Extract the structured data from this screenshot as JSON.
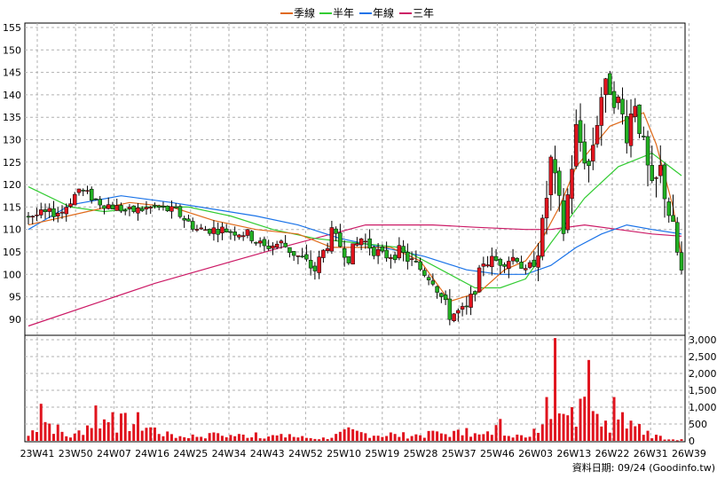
{
  "chart_data": {
    "type": "candlestick",
    "legend": [
      {
        "label": "季線",
        "color": "#e06a1a"
      },
      {
        "label": "半年",
        "color": "#33cc33"
      },
      {
        "label": "年線",
        "color": "#1a73e8"
      },
      {
        "label": "三年",
        "color": "#cc1a66"
      }
    ],
    "price_axis": {
      "min": 85,
      "max": 156,
      "ticks": [
        155,
        150,
        145,
        140,
        135,
        130,
        125,
        120,
        115,
        110,
        105,
        100,
        95,
        90
      ]
    },
    "volume_axis": {
      "min": 0,
      "max": 3000,
      "ticks": [
        3000,
        2500,
        2000,
        1500,
        1000,
        500,
        0
      ],
      "tick_labels": [
        "3,000",
        "2,500",
        "2,000",
        "1,500",
        "1,000",
        "500",
        "0"
      ]
    },
    "x_tick_labels": [
      "23W41",
      "23W50",
      "24W07",
      "24W16",
      "24W25",
      "24W34",
      "24W43",
      "24W52",
      "25W10",
      "25W19",
      "25W28",
      "25W37",
      "25W46",
      "26W03",
      "26W13",
      "26W22",
      "26W31",
      "26W39"
    ],
    "weeks": 156,
    "anchors": [
      [
        0,
        113
      ],
      [
        8,
        114
      ],
      [
        12,
        119
      ],
      [
        17,
        116
      ],
      [
        24,
        114
      ],
      [
        30,
        115
      ],
      [
        35,
        114
      ],
      [
        40,
        110
      ],
      [
        46,
        110
      ],
      [
        52,
        109
      ],
      [
        56,
        106
      ],
      [
        60,
        107
      ],
      [
        64,
        104
      ],
      [
        68,
        101
      ],
      [
        72,
        109
      ],
      [
        76,
        104
      ],
      [
        79,
        108
      ],
      [
        84,
        104
      ],
      [
        88,
        105
      ],
      [
        92,
        102
      ],
      [
        96,
        99
      ],
      [
        100,
        91
      ],
      [
        104,
        92
      ],
      [
        106,
        97
      ],
      [
        108,
        103
      ],
      [
        112,
        103
      ],
      [
        116,
        104
      ],
      [
        118,
        100
      ],
      [
        120,
        103
      ],
      [
        122,
        110
      ],
      [
        124,
        125
      ],
      [
        127,
        110
      ],
      [
        130,
        132
      ],
      [
        133,
        124
      ],
      [
        136,
        140
      ],
      [
        138,
        142
      ],
      [
        140,
        138
      ],
      [
        142,
        132
      ],
      [
        144,
        139
      ],
      [
        146,
        128
      ],
      [
        148,
        118
      ],
      [
        150,
        123
      ],
      [
        152,
        114
      ],
      [
        155,
        100
      ]
    ],
    "ma_quarter": [
      [
        0,
        111
      ],
      [
        14,
        114
      ],
      [
        24,
        116
      ],
      [
        34,
        115
      ],
      [
        44,
        112
      ],
      [
        54,
        110
      ],
      [
        64,
        109
      ],
      [
        72,
        106
      ],
      [
        80,
        106
      ],
      [
        86,
        106
      ],
      [
        93,
        103
      ],
      [
        100,
        94
      ],
      [
        107,
        96
      ],
      [
        113,
        101
      ],
      [
        118,
        103
      ],
      [
        122,
        108
      ],
      [
        126,
        115
      ],
      [
        130,
        124
      ],
      [
        138,
        133
      ],
      [
        146,
        136
      ],
      [
        149,
        129
      ],
      [
        153,
        115
      ],
      [
        155,
        104
      ]
    ],
    "ma_half": [
      [
        0,
        119.5
      ],
      [
        10,
        115
      ],
      [
        18,
        114
      ],
      [
        28,
        115
      ],
      [
        38,
        115
      ],
      [
        48,
        113
      ],
      [
        58,
        110
      ],
      [
        68,
        108
      ],
      [
        78,
        107
      ],
      [
        88,
        106
      ],
      [
        98,
        101
      ],
      [
        106,
        97
      ],
      [
        112,
        97
      ],
      [
        118,
        99
      ],
      [
        124,
        107
      ],
      [
        132,
        117
      ],
      [
        140,
        124
      ],
      [
        148,
        127
      ],
      [
        155,
        122
      ]
    ],
    "ma_year": [
      [
        0,
        110
      ],
      [
        10,
        115.5
      ],
      [
        22,
        117.5
      ],
      [
        34,
        116
      ],
      [
        44,
        114.5
      ],
      [
        54,
        113
      ],
      [
        64,
        111
      ],
      [
        74,
        108
      ],
      [
        84,
        106
      ],
      [
        94,
        104
      ],
      [
        104,
        101
      ],
      [
        112,
        100
      ],
      [
        118,
        100
      ],
      [
        124,
        102
      ],
      [
        130,
        106
      ],
      [
        136,
        109
      ],
      [
        142,
        111
      ],
      [
        148,
        110
      ],
      [
        155,
        109
      ]
    ],
    "ma_3yr": [
      [
        0,
        88.5
      ],
      [
        30,
        98
      ],
      [
        60,
        106
      ],
      [
        80,
        111
      ],
      [
        96,
        111
      ],
      [
        106,
        110.5
      ],
      [
        118,
        110
      ],
      [
        124,
        110
      ],
      [
        132,
        111
      ],
      [
        140,
        110
      ],
      [
        148,
        109
      ],
      [
        155,
        108.5
      ]
    ],
    "volume_peaks": [
      [
        0,
        150
      ],
      [
        3,
        1100
      ],
      [
        10,
        100
      ],
      [
        16,
        1050
      ],
      [
        20,
        850
      ],
      [
        26,
        850
      ],
      [
        34,
        200
      ],
      [
        44,
        250
      ],
      [
        54,
        250
      ],
      [
        62,
        200
      ],
      [
        70,
        100
      ],
      [
        76,
        400
      ],
      [
        86,
        250
      ],
      [
        96,
        300
      ],
      [
        104,
        380
      ],
      [
        108,
        200
      ],
      [
        112,
        650
      ],
      [
        118,
        100
      ],
      [
        123,
        1300
      ],
      [
        125,
        3050
      ],
      [
        127,
        800
      ],
      [
        129,
        1000
      ],
      [
        131,
        1250
      ],
      [
        133,
        2400
      ],
      [
        135,
        800
      ],
      [
        137,
        600
      ],
      [
        139,
        1300
      ],
      [
        141,
        850
      ],
      [
        143,
        600
      ],
      [
        145,
        500
      ],
      [
        147,
        300
      ],
      [
        150,
        150
      ],
      [
        155,
        50
      ]
    ],
    "footer": "資料日期: 09/24  (Goodinfo.tw)"
  }
}
